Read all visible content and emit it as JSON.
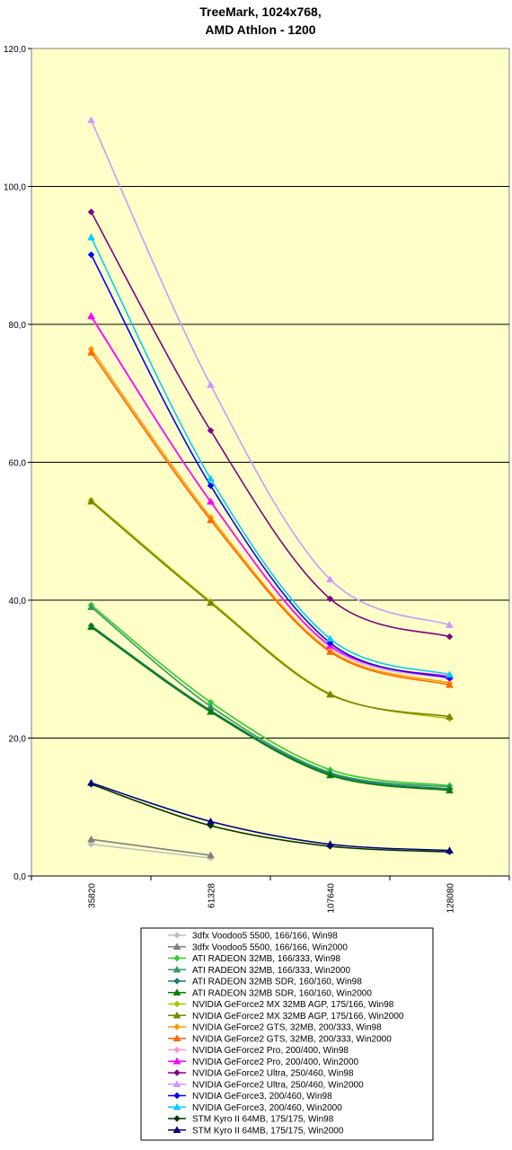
{
  "chart_data": {
    "type": "line",
    "title": [
      "TreeMark, 1024x768,",
      "AMD Athlon - 1200"
    ],
    "xlabel": "",
    "ylabel": "",
    "categories": [
      "35820",
      "61328",
      "107640",
      "128080"
    ],
    "ylim": [
      0,
      120
    ],
    "yticks": [
      "0,0",
      "20,0",
      "40,0",
      "60,0",
      "80,0",
      "100,0",
      "120,0"
    ],
    "grid": true,
    "background": "#ffffc8",
    "legend_position": "bottom",
    "series": [
      {
        "name": "3dfx Voodoo5 5500, 166/166, Win98",
        "color": "#c0c0c0",
        "marker": "diamond",
        "values": [
          4.6,
          2.6,
          null,
          null
        ]
      },
      {
        "name": "3dfx Voodoo5 5500, 166/166, Win2000",
        "color": "#808080",
        "marker": "triangle",
        "values": [
          5.3,
          3.0,
          null,
          null
        ]
      },
      {
        "name": "ATI RADEON 32MB, 166/333, Win98",
        "color": "#33cc33",
        "marker": "diamond",
        "values": [
          39.3,
          25.2,
          15.4,
          13.1
        ]
      },
      {
        "name": "ATI RADEON 32MB, 166/333, Win2000",
        "color": "#339966",
        "marker": "triangle",
        "values": [
          39.0,
          24.6,
          15.0,
          12.9
        ]
      },
      {
        "name": "ATI RADEON 32MB SDR, 160/160, Win98",
        "color": "#1e7a7a",
        "marker": "diamond",
        "values": [
          36.3,
          24.0,
          14.8,
          12.6
        ]
      },
      {
        "name": "ATI RADEON 32MB SDR, 160/160, Win2000",
        "color": "#008000",
        "marker": "triangle",
        "values": [
          36.1,
          23.8,
          14.6,
          12.4
        ]
      },
      {
        "name": "NVIDIA GeForce2 MX 32MB AGP, 175/166, Win98",
        "color": "#99cc00",
        "marker": "diamond",
        "values": [
          54.5,
          39.8,
          26.4,
          22.8
        ]
      },
      {
        "name": "NVIDIA GeForce2 MX 32MB AGP, 175/166, Win2000",
        "color": "#808000",
        "marker": "triangle",
        "values": [
          54.3,
          39.6,
          26.3,
          23.1
        ]
      },
      {
        "name": "NVIDIA GeForce2 GTS, 32MB, 200/333, Win98",
        "color": "#ff9900",
        "marker": "diamond",
        "values": [
          76.4,
          52.0,
          32.7,
          28.0
        ]
      },
      {
        "name": "NVIDIA GeForce2 GTS, 32MB, 200/333, Win2000",
        "color": "#ff6600",
        "marker": "triangle",
        "values": [
          75.9,
          51.6,
          32.5,
          27.7
        ]
      },
      {
        "name": "NVIDIA GeForce2 Pro, 200/400, Win98",
        "color": "#ff99cc",
        "marker": "diamond",
        "values": [
          81.0,
          54.2,
          33.2,
          28.6
        ]
      },
      {
        "name": "NVIDIA GeForce2 Pro, 200/400, Win2000",
        "color": "#ff00ff",
        "marker": "triangle",
        "values": [
          81.2,
          54.3,
          33.4,
          28.9
        ]
      },
      {
        "name": "NVIDIA GeForce2 Ultra, 250/460, Win98",
        "color": "#800080",
        "marker": "diamond",
        "values": [
          96.3,
          64.6,
          40.2,
          34.7
        ]
      },
      {
        "name": "NVIDIA GeForce2 Ultra, 250/460, Win2000",
        "color": "#cc99ff",
        "marker": "triangle",
        "values": [
          109.6,
          71.2,
          43.0,
          36.4
        ]
      },
      {
        "name": "NVIDIA GeForce3, 200/460, Win98",
        "color": "#0000ff",
        "marker": "diamond",
        "values": [
          90.1,
          56.6,
          33.8,
          28.7
        ]
      },
      {
        "name": "NVIDIA GeForce3, 200/460, Win2000",
        "color": "#00ccff",
        "marker": "triangle",
        "values": [
          92.6,
          57.6,
          34.4,
          29.2
        ]
      },
      {
        "name": "STM Kyro II 64MB, 175/175, Win98",
        "color": "#003300",
        "marker": "diamond",
        "values": [
          13.3,
          7.3,
          4.3,
          3.5
        ]
      },
      {
        "name": "STM Kyro II 64MB, 175/175, Win2000",
        "color": "#000080",
        "marker": "triangle",
        "values": [
          13.5,
          7.9,
          4.6,
          3.7
        ]
      }
    ]
  }
}
